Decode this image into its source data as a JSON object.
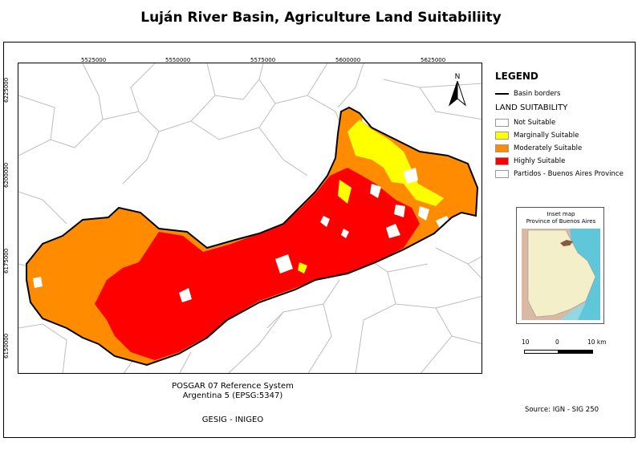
{
  "title": "Luján River Basin, Agriculture Land Suitabiliity",
  "colors": {
    "not_suitable": "#ffffff",
    "marginally_suitable": "#ffff00",
    "moderately_suitable": "#ff8c00",
    "highly_suitable": "#ff0000",
    "partidos": "#ffffff",
    "partidos_border": "#b8b8b8",
    "basin_border": "#000000"
  },
  "x_ticks": [
    "5525000",
    "5550000",
    "5575000",
    "5600000",
    "5625000"
  ],
  "y_ticks": [
    "6225000",
    "6200000",
    "6175000",
    "6150000"
  ],
  "north_arrow": {
    "label": "N",
    "icon": "north-arrow-icon"
  },
  "legend": {
    "title": "LEGEND",
    "basin_borders": "Basin borders",
    "subtitle": "LAND SUITABILITY",
    "items": [
      {
        "label": "Not Suitable",
        "color": "#ffffff"
      },
      {
        "label": "Marginally Suitable",
        "color": "#ffff00"
      },
      {
        "label": "Moderately Suitable",
        "color": "#ff8c00"
      },
      {
        "label": "Highly Suitable",
        "color": "#ff0000"
      },
      {
        "label": "Partidos - Buenos Aires Province",
        "color": "#ffffff"
      }
    ]
  },
  "inset": {
    "line1": "Inset map",
    "line2": "Province of Buenos Aires"
  },
  "scale": {
    "left": "10",
    "mid": "0",
    "right": "10 km"
  },
  "reference_system": {
    "line1": "POSGAR 07 Reference System",
    "line2": "Argentina 5 (EPSG:5347)"
  },
  "credit": "GESIG - INIGEO",
  "source": "Source: IGN - SIG 250"
}
